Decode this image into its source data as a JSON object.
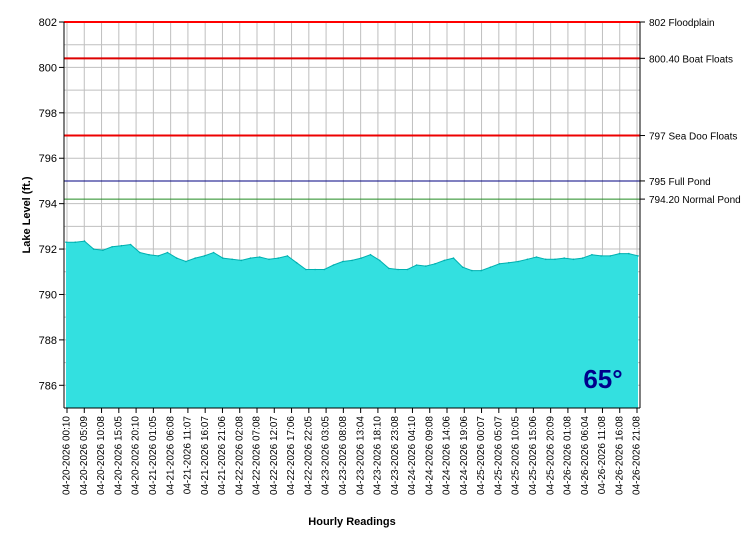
{
  "chart_data": {
    "type": "area",
    "title": "",
    "xlabel": "Hourly Readings",
    "ylabel": "Lake Level (ft.)",
    "ylim": [
      785,
      802
    ],
    "y_ticks": [
      786,
      788,
      790,
      792,
      794,
      796,
      798,
      800,
      802
    ],
    "grid": true,
    "x_tick_labels": [
      "04-20-2026 00:10",
      "04-20-2026 05:09",
      "04-20-2026 10:08",
      "04-20-2026 15:05",
      "04-20-2026 20:10",
      "04-21-2026 01:05",
      "04-21-2026 06:08",
      "04-21-2026 11:07",
      "04-21-2026 16:07",
      "04-21-2026 21:06",
      "04-22-2026 02:08",
      "04-22-2026 07:08",
      "04-22-2026 12:07",
      "04-22-2026 17:06",
      "04-22-2026 22:05",
      "04-23-2026 03:05",
      "04-23-2026 08:08",
      "04-23-2026 13:04",
      "04-23-2026 18:10",
      "04-23-2026 23:08",
      "04-24-2026 04:10",
      "04-24-2026 09:08",
      "04-24-2026 14:06",
      "04-24-2026 19:06",
      "04-25-2026 00:07",
      "04-25-2026 05:07",
      "04-25-2026 10:05",
      "04-25-2026 15:06",
      "04-25-2026 20:09",
      "04-26-2026 01:08",
      "04-26-2026 06:04",
      "04-26-2026 11:08",
      "04-26-2026 16:08",
      "04-26-2026 21:08"
    ],
    "series": [
      {
        "values": [
          792.3,
          792.3,
          792.35,
          792.0,
          791.95,
          792.1,
          792.15,
          792.2,
          791.85,
          791.75,
          791.7,
          791.85,
          791.6,
          791.45,
          791.6,
          791.7,
          791.85,
          791.6,
          791.55,
          791.5,
          791.6,
          791.65,
          791.55,
          791.6,
          791.7,
          791.4,
          791.1,
          791.1,
          791.1,
          791.3,
          791.45,
          791.5,
          791.6,
          791.75,
          791.5,
          791.15,
          791.1,
          791.1,
          791.3,
          791.25,
          791.35,
          791.5,
          791.6,
          791.2,
          791.05,
          791.05,
          791.2,
          791.35,
          791.4,
          791.45,
          791.55,
          791.65,
          791.55,
          791.55,
          791.6,
          791.55,
          791.6,
          791.75,
          791.7,
          791.7,
          791.8,
          791.8,
          791.7
        ]
      }
    ],
    "reference_lines": [
      {
        "value": 802,
        "label": "802 Floodplain",
        "color": "#ff0000"
      },
      {
        "value": 800.4,
        "label": "800.40 Boat Floats",
        "color": "#dd0000"
      },
      {
        "value": 797,
        "label": "797 Sea Doo Floats",
        "color": "#ee0000"
      },
      {
        "value": 795,
        "label": "795 Full Pond",
        "color": "#000080"
      },
      {
        "value": 794.2,
        "label": "794.20 Normal Pond",
        "color": "#228b22"
      }
    ],
    "temperature_badge": "65°",
    "colors": {
      "area_fill": "#33e0e0",
      "area_stroke": "#00b0b0",
      "grid": "#bfbfbf",
      "badge_text": "#00008b"
    }
  }
}
